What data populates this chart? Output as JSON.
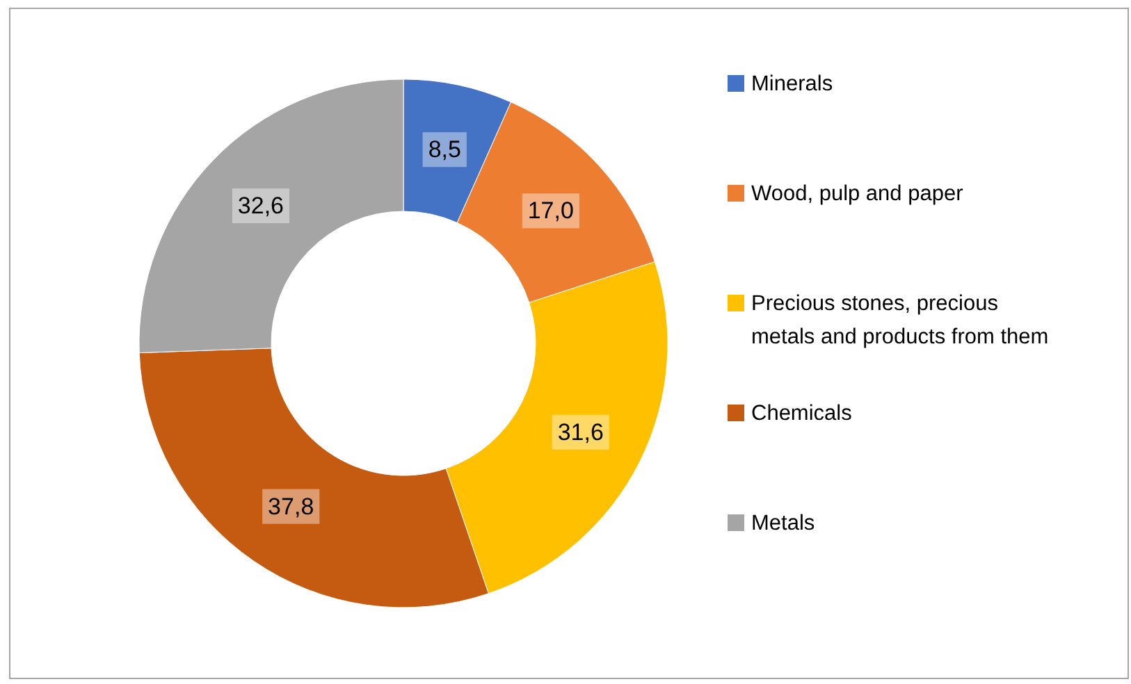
{
  "chart_data": {
    "type": "donut",
    "categories": [
      "Minerals",
      "Wood, pulp and paper",
      "Precious stones, precious metals and products from them",
      "Chemicals",
      "Metals"
    ],
    "values": [
      8.5,
      17.0,
      31.6,
      37.8,
      32.6
    ],
    "value_labels": [
      "8,5",
      "17,0",
      "31,6",
      "37,8",
      "32,6"
    ],
    "colors": [
      "#4472c4",
      "#ed7d31",
      "#ffc000",
      "#c55a11",
      "#a5a5a5"
    ],
    "legend": "right"
  }
}
